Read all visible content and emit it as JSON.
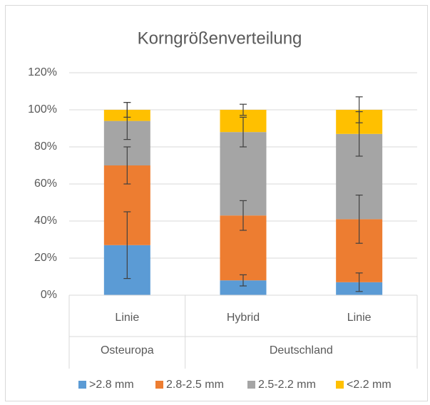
{
  "chart_data": {
    "type": "stacked_bar",
    "title": "Korngrößenverteilung",
    "categories": [
      "Linie",
      "Hybrid",
      "Linie"
    ],
    "category_groups": [
      "Osteuropa",
      "Deutschland",
      "Deutschland"
    ],
    "series": [
      {
        "name": ">2.8 mm",
        "color": "#5b9bd5",
        "values": [
          27,
          8,
          7
        ],
        "errors": [
          18,
          3,
          5
        ]
      },
      {
        "name": "2.8-2.5 mm",
        "color": "#ed7d31",
        "values": [
          43,
          35,
          34
        ],
        "errors": [
          10,
          8,
          13
        ]
      },
      {
        "name": "2.5-2.2 mm",
        "color": "#a5a5a5",
        "values": [
          24,
          45,
          46
        ],
        "errors": [
          10,
          8,
          12
        ]
      },
      {
        "name": "<2.2 mm",
        "color": "#ffc000",
        "values": [
          6,
          12,
          13
        ],
        "errors": [
          4,
          3,
          7
        ]
      }
    ],
    "ylim": [
      0,
      120
    ],
    "yticks": [
      {
        "value": 0,
        "label": "0%"
      },
      {
        "value": 20,
        "label": "20%"
      },
      {
        "value": 40,
        "label": "40%"
      },
      {
        "value": 60,
        "label": "60%"
      },
      {
        "value": 80,
        "label": "80%"
      },
      {
        "value": 100,
        "label": "100%"
      },
      {
        "value": 120,
        "label": "120%"
      }
    ],
    "grid": true,
    "legend": "bottom"
  }
}
